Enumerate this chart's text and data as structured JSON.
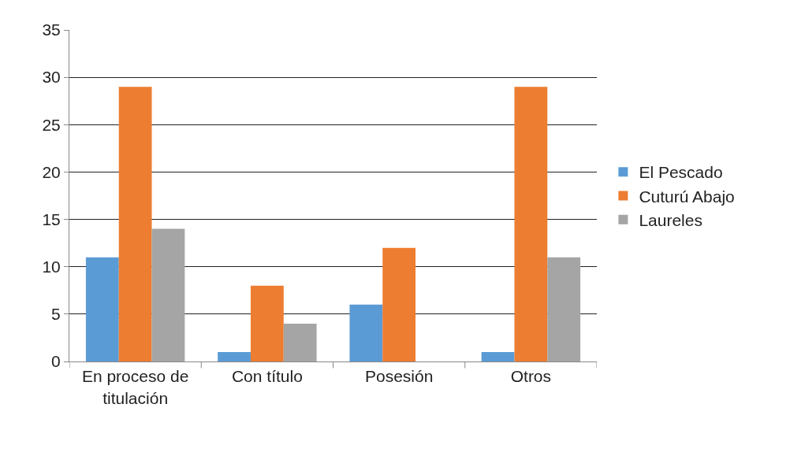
{
  "chart_data": {
    "type": "bar",
    "categories": [
      "En proceso de titulación",
      "Con título",
      "Posesión",
      "Otros"
    ],
    "series": [
      {
        "name": "El Pescado",
        "color": "#5b9bd5",
        "values": [
          11,
          1,
          6,
          1
        ]
      },
      {
        "name": "Cuturú Abajo",
        "color": "#ed7d31",
        "values": [
          29,
          8,
          12,
          29
        ]
      },
      {
        "name": "Laureles",
        "color": "#a5a5a5",
        "values": [
          14,
          4,
          0,
          11
        ]
      }
    ],
    "ylim": [
      0,
      35
    ],
    "yticks": [
      0,
      5,
      10,
      15,
      20,
      25,
      30,
      35
    ],
    "grid": "y",
    "legend": "right"
  }
}
